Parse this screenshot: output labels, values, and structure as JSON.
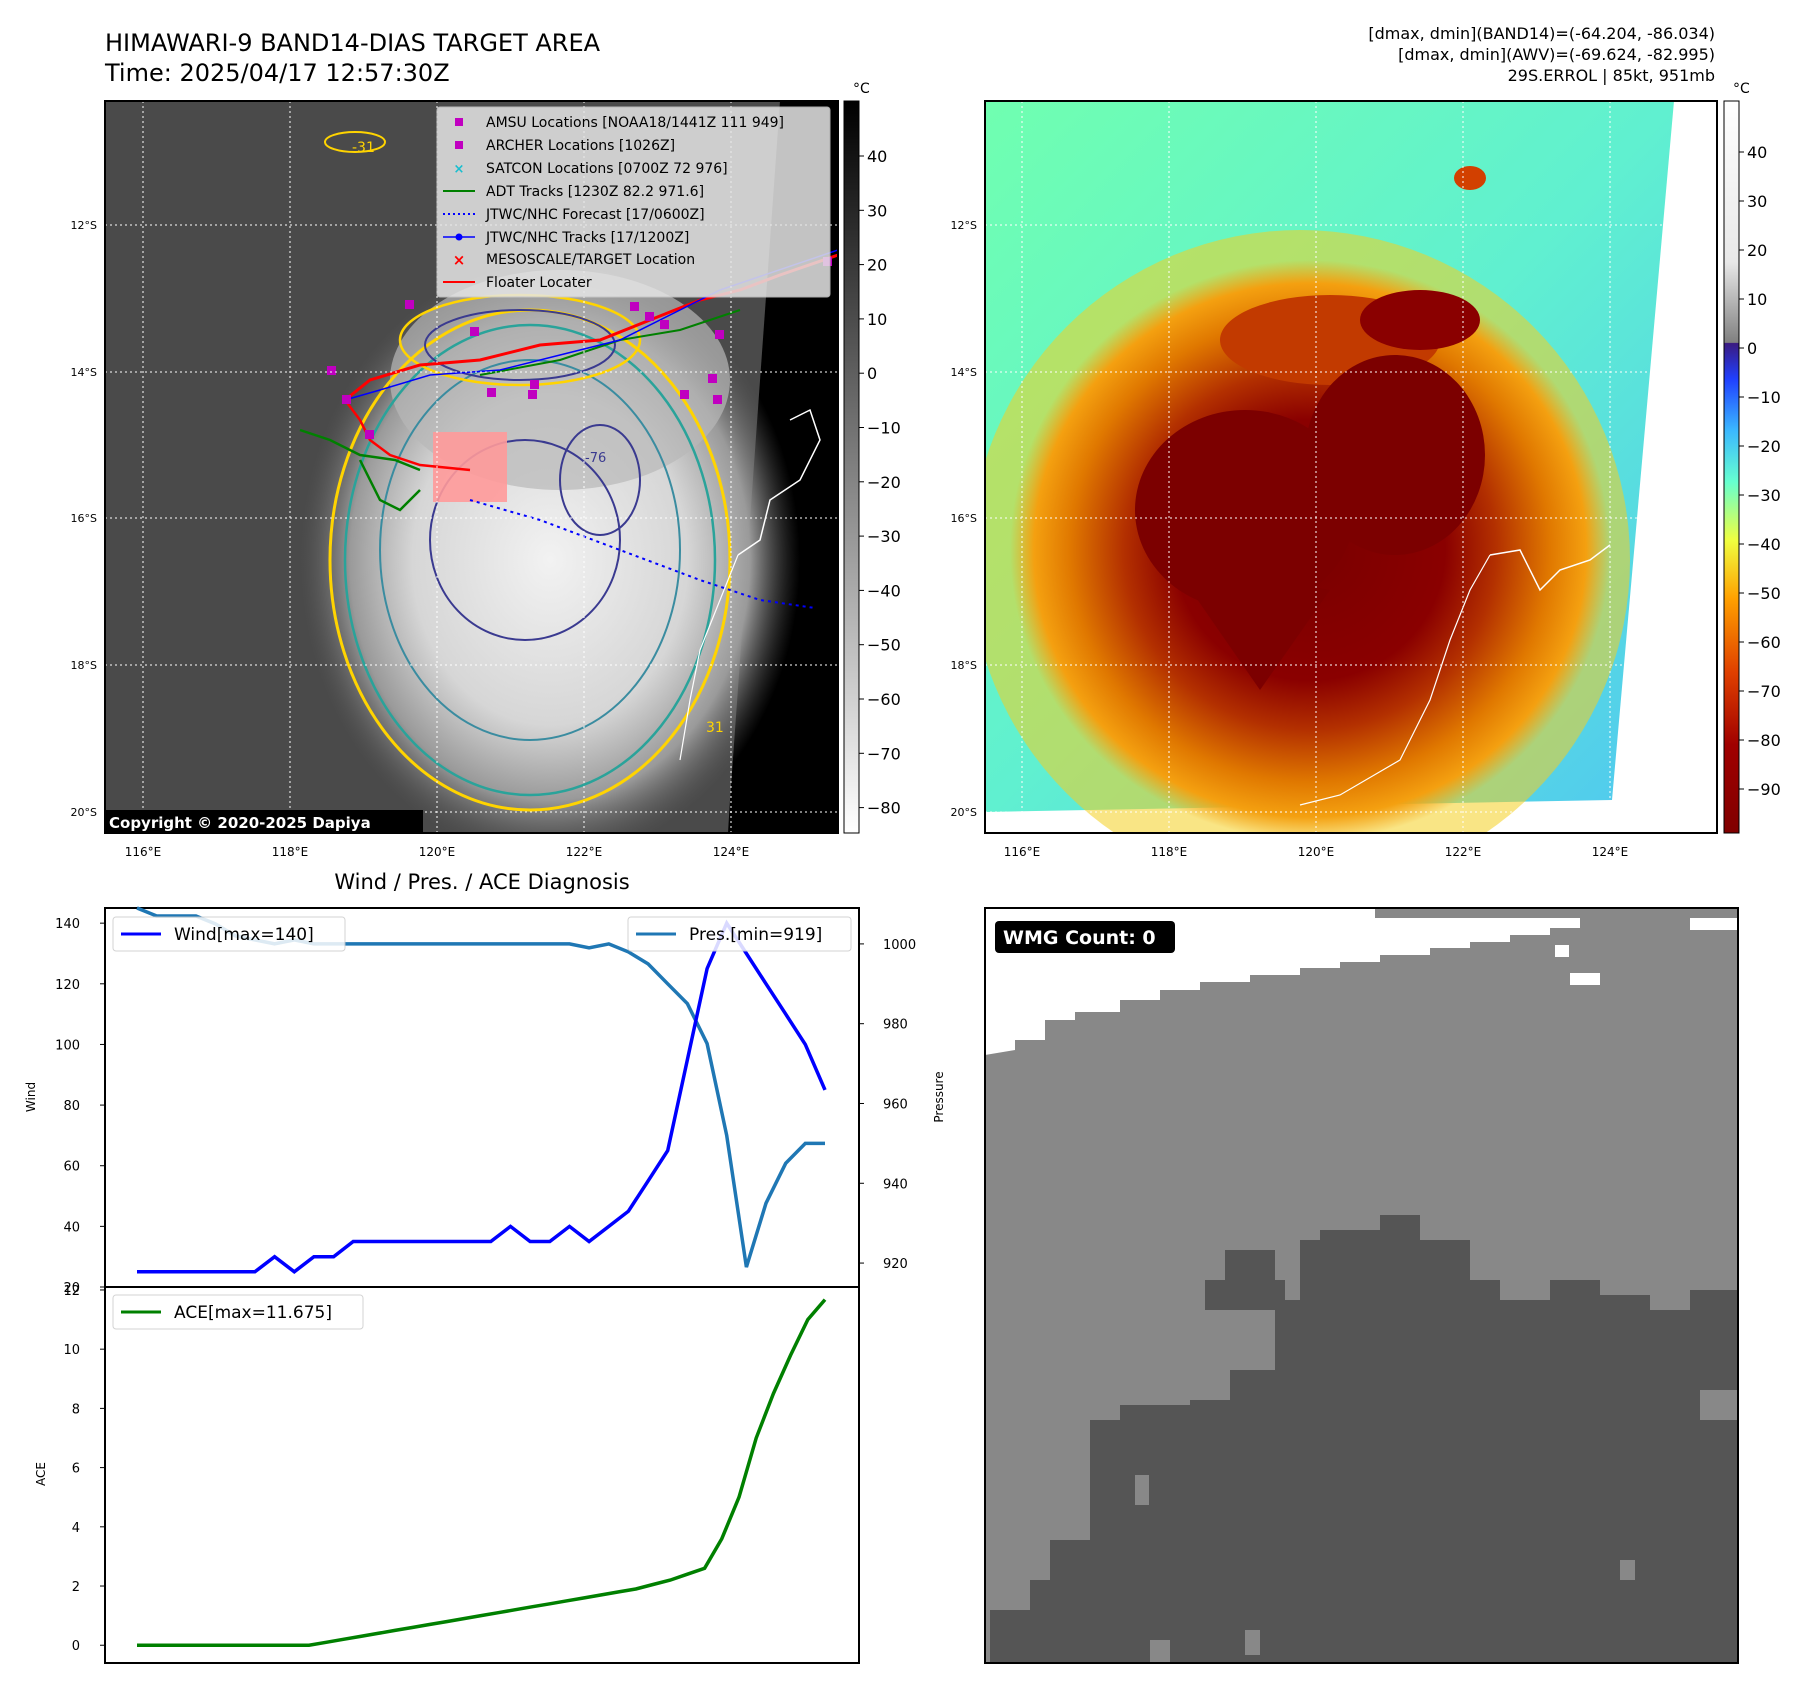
{
  "header": {
    "title_line1": "HIMAWARI-9 BAND14-DIAS TARGET AREA",
    "title_line2": "Time: 2025/04/17 12:57:30Z",
    "info_line1": "[dmax, dmin](BAND14)=(-64.204, -86.034)",
    "info_line2": "[dmax, dmin](AWV)=(-69.624, -82.995)",
    "info_line3": "29S.ERROL | 85kt, 951mb"
  },
  "map_left": {
    "lat_labels": [
      "12°S",
      "14°S",
      "16°S",
      "18°S",
      "20°S"
    ],
    "lon_labels": [
      "116°E",
      "118°E",
      "120°E",
      "122°E",
      "124°E"
    ],
    "copyright": "Copyright © 2020-2025 Dapiya",
    "contour_label_a": "-31",
    "contour_label_b": "-76",
    "contour_label_c": "31",
    "legend": [
      {
        "label": "AMSU Locations [NOAA18/1441Z 111 949]",
        "color": "#c000c0",
        "marker": "square"
      },
      {
        "label": "ARCHER Locations [1026Z]",
        "color": "#c000c0",
        "marker": "square"
      },
      {
        "label": "SATCON Locations [0700Z 72 976]",
        "color": "#17becf",
        "marker": "x"
      },
      {
        "label": "ADT Tracks [1230Z 82.2 971.6]",
        "color": "#008000",
        "marker": "line"
      },
      {
        "label": "JTWC/NHC Forecast [17/0600Z]",
        "color": "#0000ff",
        "marker": "dotted"
      },
      {
        "label": "JTWC/NHC Tracks [17/1200Z]",
        "color": "#0000ff",
        "marker": "dotline"
      },
      {
        "label": "MESOSCALE/TARGET Location",
        "color": "#ff0000",
        "marker": "x"
      },
      {
        "label": "Floater Locater",
        "color": "#ff0000",
        "marker": "line"
      }
    ],
    "colorbar_unit": "°C",
    "colorbar_ticks": [
      "40",
      "30",
      "20",
      "10",
      "0",
      "−10",
      "−20",
      "−30",
      "−40",
      "−50",
      "−60",
      "−70",
      "−80"
    ]
  },
  "map_right": {
    "lat_labels": [
      "12°S",
      "14°S",
      "16°S",
      "18°S",
      "20°S"
    ],
    "lon_labels": [
      "116°E",
      "118°E",
      "120°E",
      "122°E",
      "124°E"
    ],
    "colorbar_unit": "°C",
    "colorbar_ticks": [
      "40",
      "30",
      "20",
      "10",
      "0",
      "−10",
      "−20",
      "−30",
      "−40",
      "−50",
      "−60",
      "−70",
      "−80",
      "−90"
    ]
  },
  "wmg": {
    "label": "WMG Count: 0"
  },
  "chart_data": [
    {
      "type": "line",
      "title": "Wind / Pres. / ACE Diagnosis",
      "ylabel": "Wind",
      "y2label": "Pressure",
      "ylim": [
        20,
        145
      ],
      "y2lim": [
        914,
        1009
      ],
      "yticks": [
        20,
        40,
        60,
        80,
        100,
        120,
        140
      ],
      "y2ticks": [
        920,
        940,
        960,
        980,
        1000
      ],
      "series": [
        {
          "name": "Wind[max=140]",
          "color": "#0000ff",
          "axis": "left",
          "values": [
            25,
            25,
            25,
            25,
            25,
            25,
            25,
            30,
            25,
            30,
            30,
            35,
            35,
            35,
            35,
            35,
            35,
            35,
            35,
            40,
            35,
            35,
            40,
            35,
            40,
            45,
            55,
            65,
            95,
            125,
            140,
            130,
            120,
            110,
            100,
            85
          ]
        },
        {
          "name": "Pres.[min=919]",
          "color": "#1f77b4",
          "axis": "right",
          "values": [
            1009,
            1007,
            1007,
            1007,
            1005,
            1002,
            1001,
            1000,
            1001,
            1000,
            1000,
            1000,
            1000,
            1000,
            1000,
            1000,
            1000,
            1000,
            1000,
            1000,
            1000,
            1000,
            1000,
            999,
            1000,
            998,
            995,
            990,
            985,
            975,
            952,
            919,
            935,
            945,
            950,
            950
          ]
        }
      ]
    },
    {
      "type": "line",
      "ylabel": "ACE",
      "ylim": [
        -0.6,
        12.1
      ],
      "yticks": [
        0,
        2,
        4,
        6,
        8,
        10,
        12
      ],
      "series": [
        {
          "name": "ACE[max=11.675]",
          "color": "#008000",
          "values": [
            0,
            0,
            0,
            0,
            0,
            0,
            0,
            0,
            0,
            0,
            0,
            0.1,
            0.2,
            0.3,
            0.4,
            0.5,
            0.6,
            0.7,
            0.8,
            0.9,
            1.0,
            1.1,
            1.2,
            1.3,
            1.4,
            1.5,
            1.6,
            1.7,
            1.8,
            1.9,
            2.05,
            2.2,
            2.4,
            2.6,
            3.6,
            5.0,
            7.0,
            8.5,
            9.8,
            11.0,
            11.675
          ]
        }
      ]
    }
  ]
}
